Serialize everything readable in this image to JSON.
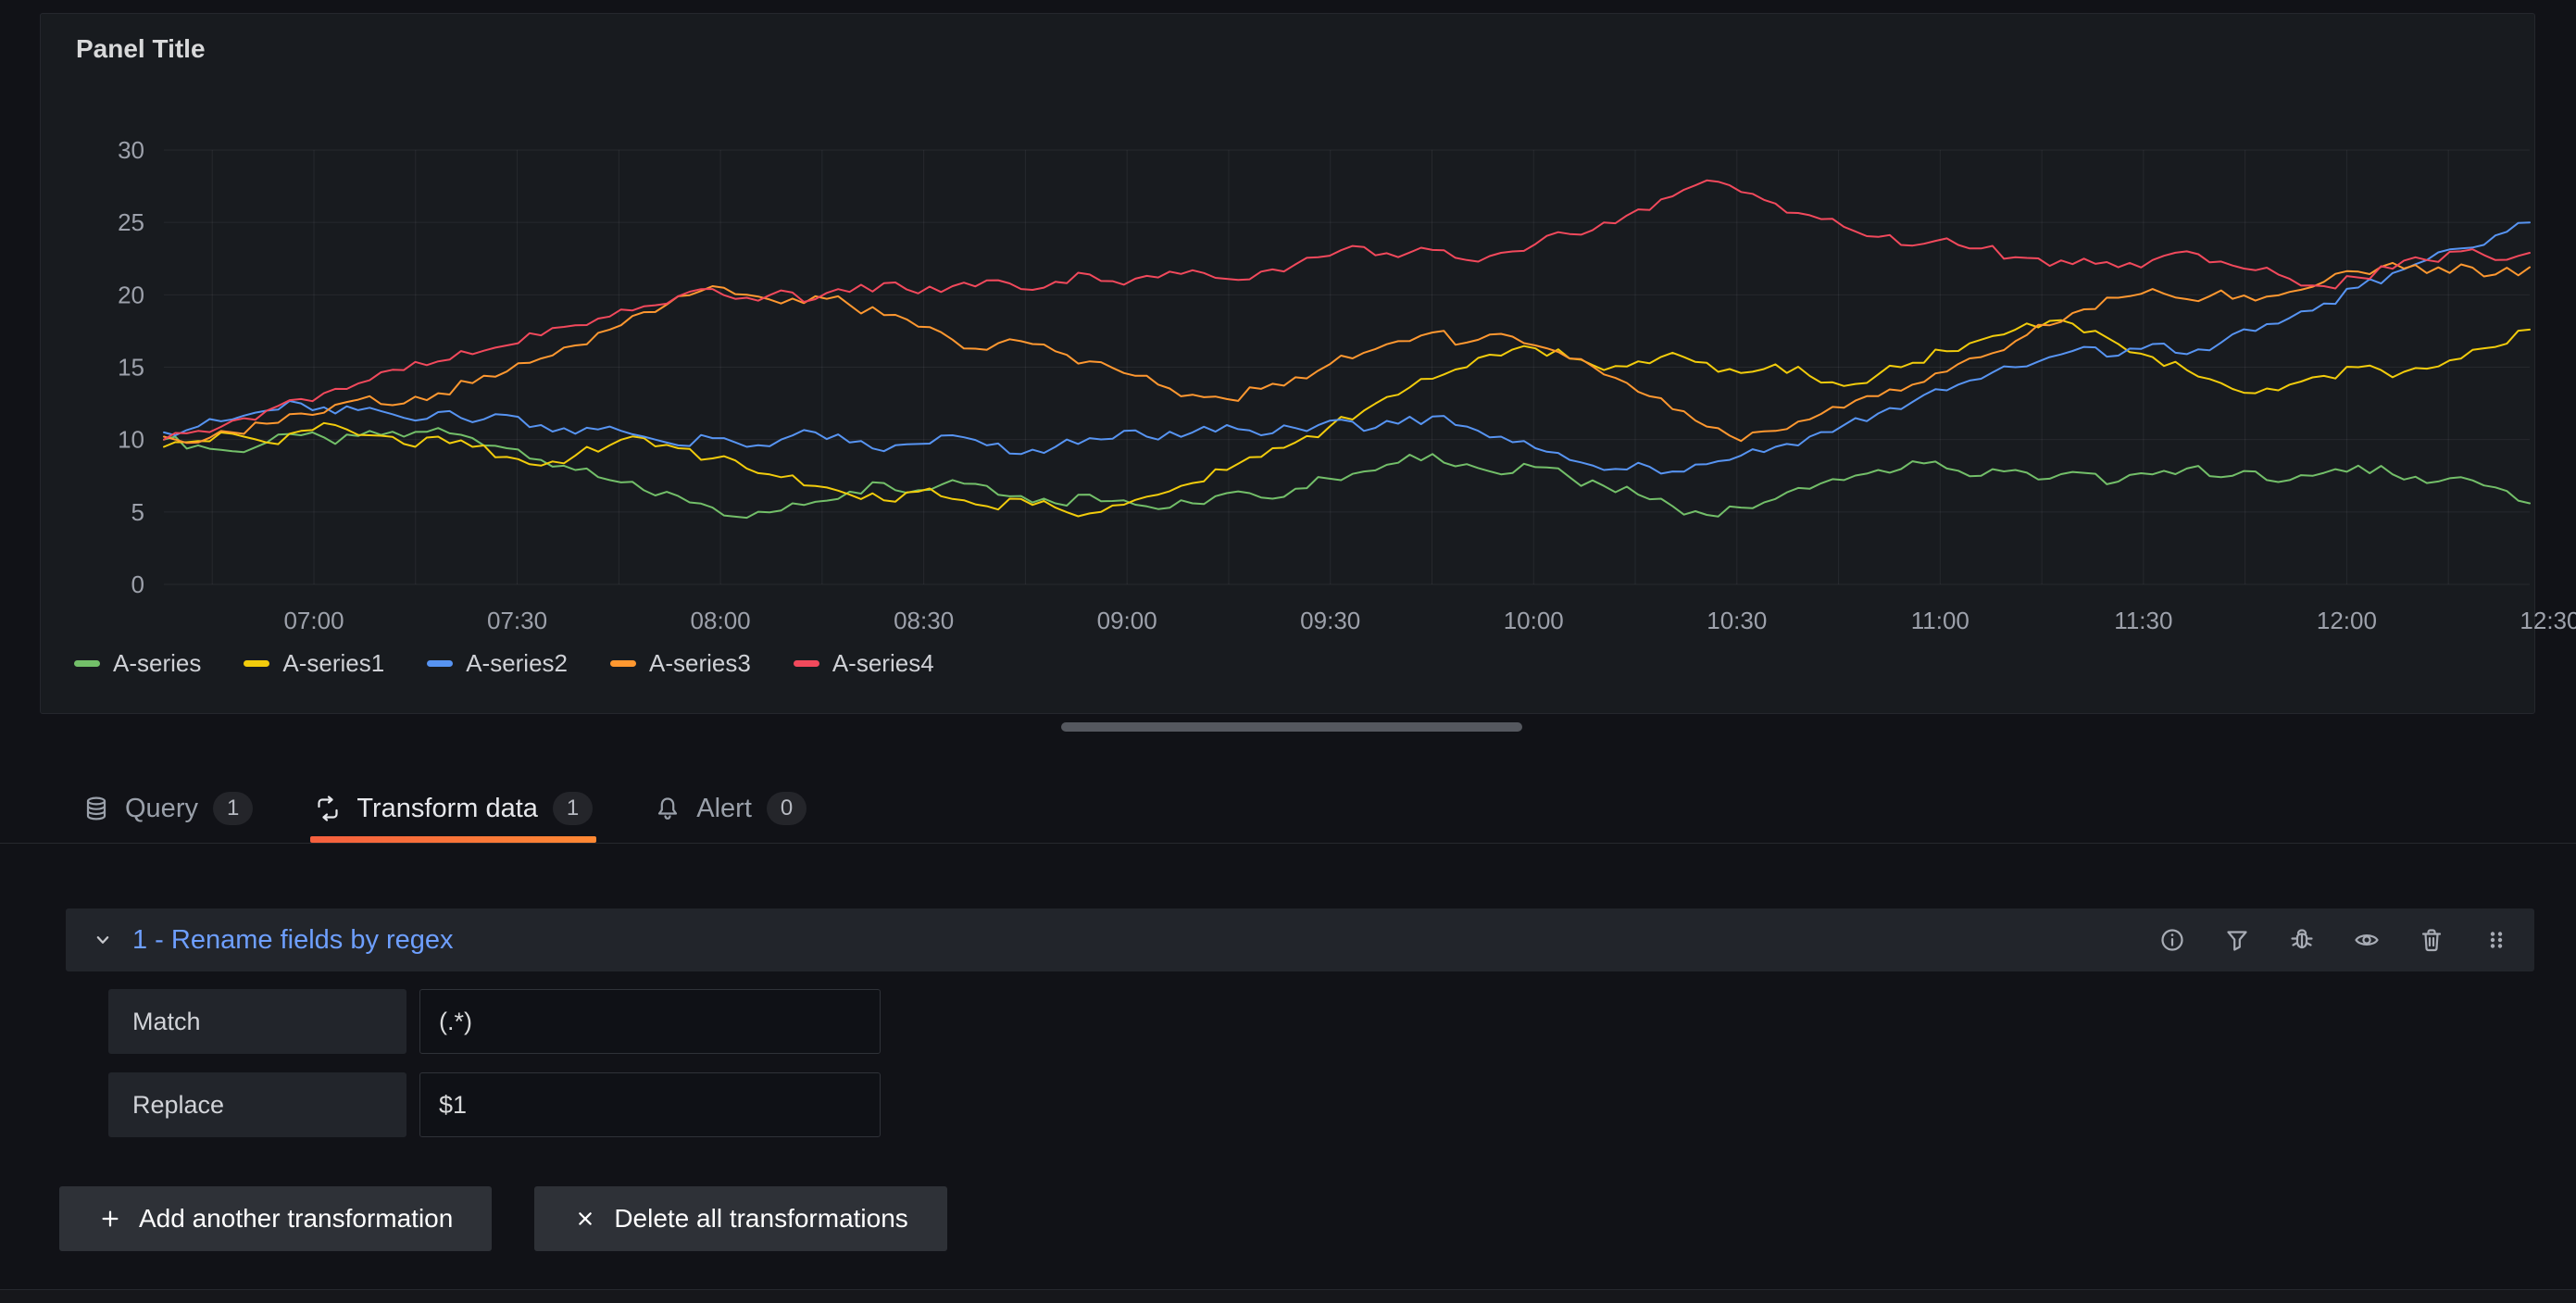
{
  "panel": {
    "title": "Panel Title"
  },
  "chart_data": {
    "type": "line",
    "title": "Panel Title",
    "xlabel": "",
    "ylabel": "",
    "grid": true,
    "legend_position": "bottom",
    "x_start_hour": 6.631,
    "x_end_hour": 12.45,
    "x_tick_hours": [
      7,
      7.5,
      8,
      8.5,
      9,
      9.5,
      10,
      10.5,
      11,
      11.5,
      12,
      12.5
    ],
    "x_tick_labels": [
      "07:00",
      "07:30",
      "08:00",
      "08:30",
      "09:00",
      "09:30",
      "10:00",
      "10:30",
      "11:00",
      "11:30",
      "12:00",
      "12:30"
    ],
    "y_ticks": [
      0,
      5,
      10,
      15,
      20,
      25,
      30
    ],
    "ylim": [
      0,
      30
    ],
    "series": [
      {
        "name": "A-series",
        "color": "#73BF69",
        "values": [
          10.0,
          9.6,
          9.2,
          9.8,
          10.3,
          9.7,
          10.6,
          10.2,
          10.8,
          10.1,
          9.4,
          8.6,
          7.9,
          7.2,
          6.5,
          6.1,
          5.3,
          4.6,
          5.1,
          5.7,
          6.4,
          7.0,
          6.5,
          7.2,
          6.8,
          6.1,
          5.6,
          6.2,
          5.8,
          5.2,
          5.6,
          6.3,
          6.0,
          6.6,
          7.3,
          7.8,
          8.4,
          9.0,
          8.3,
          7.6,
          8.1,
          7.4,
          6.8,
          6.2,
          5.4,
          4.8,
          5.3,
          5.9,
          6.6,
          7.2,
          7.9,
          8.5,
          8.0,
          7.5,
          7.9,
          7.3,
          7.7,
          7.1,
          7.6,
          8.0,
          7.4,
          7.8,
          7.2,
          7.7,
          8.2,
          7.6,
          7.0,
          7.4,
          6.7,
          5.6
        ]
      },
      {
        "name": "A-series1",
        "color": "#F2CC0C",
        "values": [
          9.5,
          9.9,
          10.4,
          9.8,
          10.6,
          11.0,
          10.3,
          9.7,
          10.2,
          9.5,
          8.8,
          8.2,
          8.9,
          9.6,
          10.1,
          9.4,
          8.7,
          8.0,
          7.4,
          6.8,
          6.2,
          5.8,
          6.4,
          5.9,
          5.4,
          5.9,
          5.3,
          4.9,
          5.5,
          6.2,
          7.0,
          7.9,
          8.8,
          9.8,
          10.9,
          12.0,
          13.1,
          14.2,
          15.0,
          15.8,
          16.3,
          15.6,
          14.8,
          15.4,
          16.0,
          15.3,
          14.6,
          15.2,
          14.4,
          13.7,
          14.5,
          15.3,
          16.1,
          16.9,
          17.6,
          18.2,
          17.4,
          16.6,
          15.7,
          14.8,
          13.9,
          13.2,
          13.8,
          14.4,
          15.0,
          14.3,
          14.9,
          15.6,
          16.4,
          17.6
        ]
      },
      {
        "name": "A-series2",
        "color": "#5794F2",
        "values": [
          10.5,
          10.9,
          11.4,
          12.0,
          12.5,
          11.8,
          12.2,
          11.5,
          11.9,
          11.2,
          11.7,
          11.0,
          10.4,
          10.9,
          10.2,
          9.6,
          10.1,
          9.5,
          10.0,
          10.5,
          9.8,
          9.2,
          9.7,
          10.3,
          9.6,
          9.0,
          9.5,
          10.1,
          10.6,
          10.0,
          10.5,
          11.0,
          10.3,
          10.8,
          11.3,
          10.6,
          11.1,
          11.6,
          10.9,
          10.2,
          9.4,
          8.6,
          7.9,
          8.4,
          7.8,
          8.3,
          8.9,
          9.5,
          10.2,
          11.0,
          11.8,
          12.6,
          13.4,
          14.2,
          15.0,
          15.7,
          16.4,
          15.8,
          16.6,
          15.9,
          16.7,
          17.5,
          18.4,
          19.4,
          20.5,
          21.5,
          22.4,
          23.2,
          24.1,
          25.0
        ]
      },
      {
        "name": "A-series3",
        "color": "#FF9830",
        "values": [
          10.2,
          9.8,
          10.5,
          11.1,
          11.8,
          12.4,
          13.0,
          12.5,
          13.2,
          13.9,
          14.7,
          15.6,
          16.5,
          17.6,
          18.8,
          19.9,
          20.6,
          20.0,
          19.4,
          19.9,
          19.3,
          18.6,
          17.8,
          16.9,
          16.2,
          16.8,
          16.1,
          15.4,
          14.6,
          13.8,
          13.1,
          12.8,
          13.5,
          14.3,
          15.2,
          16.0,
          16.8,
          17.4,
          16.7,
          17.3,
          16.5,
          15.6,
          14.5,
          13.3,
          12.1,
          10.9,
          9.9,
          10.6,
          11.4,
          12.2,
          13.0,
          13.8,
          14.7,
          15.7,
          16.8,
          17.9,
          19.0,
          19.8,
          20.4,
          19.7,
          20.3,
          19.6,
          20.2,
          20.9,
          21.6,
          22.2,
          21.5,
          22.1,
          21.4,
          21.9
        ]
      },
      {
        "name": "A-series4",
        "color": "#F2495C",
        "values": [
          10.0,
          10.6,
          11.3,
          12.0,
          12.8,
          13.5,
          14.1,
          14.8,
          15.4,
          15.9,
          16.5,
          17.2,
          17.9,
          18.5,
          19.2,
          19.9,
          20.4,
          19.8,
          20.3,
          19.7,
          20.2,
          20.8,
          20.1,
          20.6,
          21.0,
          20.4,
          20.9,
          21.4,
          20.7,
          21.2,
          21.7,
          21.1,
          21.6,
          22.1,
          22.7,
          23.3,
          22.6,
          23.1,
          22.4,
          22.9,
          23.5,
          24.2,
          25.0,
          25.9,
          26.8,
          27.9,
          27.1,
          26.3,
          25.5,
          24.7,
          24.0,
          23.4,
          23.9,
          23.2,
          22.6,
          22.0,
          22.5,
          21.9,
          22.4,
          23.0,
          22.3,
          21.7,
          21.1,
          20.6,
          21.2,
          21.8,
          22.4,
          23.0,
          22.4,
          22.9
        ]
      }
    ]
  },
  "tabs": [
    {
      "label": "Query",
      "count": "1",
      "icon": "database-icon",
      "active": false
    },
    {
      "label": "Transform data",
      "count": "1",
      "icon": "transform-icon",
      "active": true
    },
    {
      "label": "Alert",
      "count": "0",
      "icon": "bell-icon",
      "active": false
    }
  ],
  "transform": {
    "header_title": "1 - Rename fields by regex",
    "header_icons": [
      "info-icon",
      "filter-icon",
      "bug-icon",
      "eye-icon",
      "trash-icon",
      "grip-icon"
    ],
    "fields": [
      {
        "label": "Match",
        "value": "(.*)"
      },
      {
        "label": "Replace",
        "value": "$1"
      }
    ]
  },
  "actions": {
    "add_label": "Add another transformation",
    "delete_label": "Delete all transformations"
  },
  "colors": {
    "page_bg": "#111217",
    "panel_bg": "#181B1F",
    "surface": "#22252B",
    "link_blue": "#6E9FFF",
    "tab_accent_start": "#F55F3E",
    "tab_accent_end": "#FF8833"
  }
}
